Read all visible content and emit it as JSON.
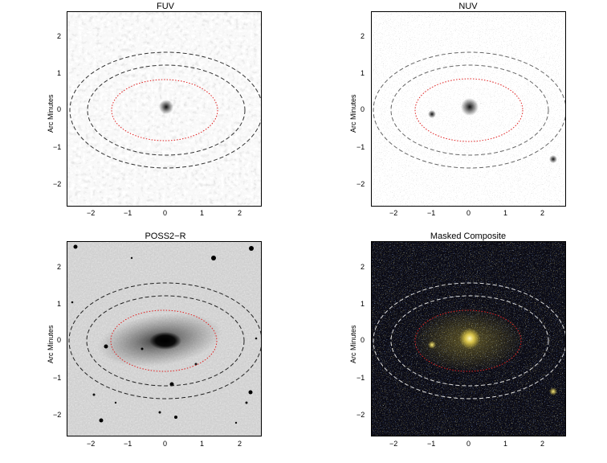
{
  "panels": [
    {
      "title": "FUV",
      "ylabel": "Arc Minutes",
      "y_ticks": [
        "2",
        "1",
        "0",
        "−1",
        "−2"
      ],
      "x_ticks": [
        "−2",
        "−1",
        "0",
        "1",
        "2"
      ]
    },
    {
      "title": "NUV",
      "ylabel": "Arc Minutes",
      "y_ticks": [
        "2",
        "1",
        "0",
        "−1",
        "−2"
      ],
      "x_ticks": [
        "−2",
        "−1",
        "0",
        "1",
        "2"
      ]
    },
    {
      "title": "POSS2−R",
      "ylabel": "Arc Minutes",
      "y_ticks": [
        "2",
        "1",
        "0",
        "−1",
        "−2"
      ],
      "x_ticks": [
        "−2",
        "−1",
        "0",
        "1",
        "2"
      ]
    },
    {
      "title": "Masked Composite",
      "ylabel": "Arc Minutes",
      "y_ticks": [
        "2",
        "1",
        "0",
        "−1",
        "−2"
      ],
      "x_ticks": [
        "−2",
        "−1",
        "0",
        "1",
        "2"
      ]
    }
  ],
  "colors": {
    "inner_ellipse": "#e02020",
    "outer_ellipse_dark": "#333333",
    "outer_ellipse_light": "#dddddd",
    "composite_blue": "#3a5fd0",
    "composite_yellow": "#e8d040"
  }
}
